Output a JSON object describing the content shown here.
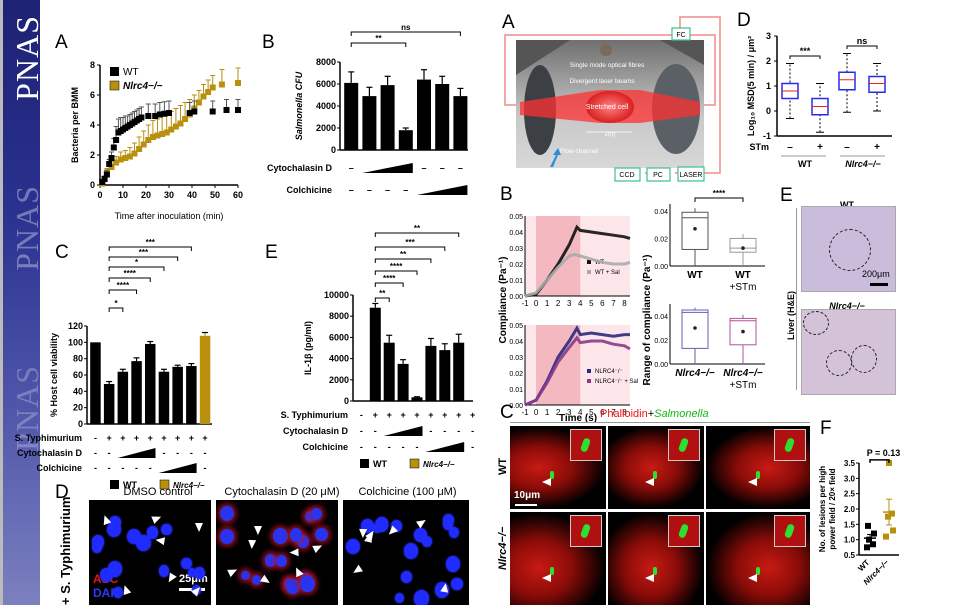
{
  "journal": {
    "name": "PNAS"
  },
  "left": {
    "A": {
      "letter": "A",
      "chart_data": {
        "type": "scatter",
        "xlabel": "Time after inoculation (min)",
        "ylabel": "Bacteria per BMM",
        "xlim": [
          0,
          60
        ],
        "ylim": [
          0,
          8
        ],
        "xticks": [
          "0",
          "10",
          "20",
          "30",
          "40",
          "50",
          "60"
        ],
        "yticks": [
          "0",
          "2",
          "4",
          "6",
          "8"
        ],
        "legend": [
          "WT",
          "Nlrc4−/−"
        ],
        "series": [
          {
            "name": "WT",
            "color": "#000000",
            "x": [
              1,
              2,
              3,
              4,
              5,
              6,
              7,
              8,
              9,
              10,
              11,
              12,
              13,
              14,
              15,
              16,
              17,
              18,
              21,
              24,
              26,
              28,
              30,
              39,
              41,
              49,
              55,
              60
            ],
            "y": [
              0.2,
              0.4,
              0.7,
              1.4,
              1.8,
              2.5,
              3.0,
              3.5,
              3.6,
              3.7,
              3.8,
              3.9,
              4.0,
              4.1,
              4.2,
              4.3,
              4.4,
              4.5,
              4.6,
              4.6,
              4.7,
              4.75,
              4.8,
              4.8,
              4.9,
              4.9,
              5.0,
              5.0
            ],
            "err": [
              0.1,
              0.2,
              0.3,
              0.3,
              0.4,
              0.6,
              0.9,
              0.9,
              0.9,
              0.8,
              0.8,
              0.7,
              0.7,
              0.7,
              0.7,
              0.7,
              0.7,
              0.7,
              0.8,
              0.8,
              0.8,
              0.8,
              0.8,
              0.7,
              0.7,
              0.7,
              0.7,
              0.7
            ]
          },
          {
            "name": "Nlrc4−/−",
            "color": "#b8900e",
            "x": [
              1,
              3,
              5,
              7,
              9,
              11,
              13,
              15,
              17,
              19,
              21,
              23,
              25,
              27,
              29,
              31,
              33,
              35,
              37,
              39,
              41,
              43,
              45,
              47,
              49,
              53,
              60
            ],
            "y": [
              0.1,
              0.8,
              1.2,
              1.5,
              1.7,
              1.8,
              1.9,
              2.1,
              2.4,
              2.7,
              3.0,
              3.2,
              3.3,
              3.4,
              3.5,
              3.7,
              3.9,
              4.1,
              4.4,
              4.7,
              5.1,
              5.5,
              5.9,
              6.2,
              6.5,
              6.7,
              6.8
            ],
            "err": [
              0.1,
              0.3,
              0.4,
              0.4,
              0.5,
              0.5,
              0.6,
              0.7,
              0.8,
              0.9,
              1.0,
              1.1,
              1.1,
              1.2,
              1.2,
              1.2,
              1.2,
              1.2,
              1.1,
              1.0,
              0.9,
              0.8,
              0.8,
              0.8,
              0.8,
              1.0,
              1.0
            ]
          }
        ]
      }
    },
    "B": {
      "letter": "B",
      "chart_data": {
        "type": "bar",
        "ylabel": "Salmonella CFU",
        "ylim": [
          0,
          8000
        ],
        "yticks": [
          "0",
          "2000",
          "4000",
          "6000",
          "8000"
        ],
        "values": [
          6100,
          4900,
          5900,
          1800,
          6400,
          6000,
          4900
        ],
        "errors": [
          1000,
          800,
          800,
          200,
          900,
          700,
          700
        ],
        "significance": [
          {
            "label": "**",
            "from": 0,
            "to": 3
          },
          {
            "label": "ns",
            "from": 0,
            "to": 6
          }
        ],
        "treatments": [
          {
            "name": "Cytochalasin D",
            "marks": [
              "–",
              "ramp",
              "ramp",
              "ramp",
              "–",
              "–",
              "–"
            ]
          },
          {
            "name": "Colchicine",
            "marks": [
              "–",
              "–",
              "–",
              "–",
              "ramp",
              "ramp",
              "ramp"
            ]
          }
        ]
      }
    },
    "C": {
      "letter": "C",
      "chart_data": {
        "type": "bar",
        "ylabel": "% Host cell viability",
        "ylim": [
          0,
          120
        ],
        "yticks": [
          "0",
          "20",
          "40",
          "60",
          "80",
          "100",
          "120"
        ],
        "values": [
          100,
          49,
          64,
          77,
          98,
          64,
          70,
          71,
          108
        ],
        "errors": [
          0,
          3,
          3,
          4,
          3,
          3,
          2,
          3,
          4
        ],
        "colors": [
          "#000000",
          "#000000",
          "#000000",
          "#000000",
          "#000000",
          "#000000",
          "#000000",
          "#000000",
          "#b8900e"
        ],
        "significance": [
          {
            "label": "*",
            "from": 1,
            "to": 2
          },
          {
            "label": "****",
            "from": 1,
            "to": 3
          },
          {
            "label": "****",
            "from": 1,
            "to": 4
          },
          {
            "label": "*",
            "from": 1,
            "to": 5
          },
          {
            "label": "***",
            "from": 1,
            "to": 6
          },
          {
            "label": "***",
            "from": 1,
            "to": 7
          }
        ],
        "treatments": [
          {
            "name": "S. Typhimurium",
            "marks": [
              "-",
              "+",
              "+",
              "+",
              "+",
              "+",
              "+",
              "+",
              "+"
            ]
          },
          {
            "name": "Cytochalasin D",
            "marks": [
              "-",
              "-",
              "ramp",
              "ramp",
              "ramp",
              "-",
              "-",
              "-",
              "-"
            ]
          },
          {
            "name": "Colchicine",
            "marks": [
              "-",
              "-",
              "-",
              "-",
              "-",
              "ramp",
              "ramp",
              "ramp",
              "-"
            ]
          }
        ],
        "legend": [
          "WT",
          "Nlrc4−/−"
        ]
      }
    },
    "E": {
      "letter": "E",
      "chart_data": {
        "type": "bar",
        "ylabel": "IL-1β (pg/ml)",
        "ylim": [
          0,
          10000
        ],
        "yticks": [
          "0",
          "2000",
          "4000",
          "6000",
          "8000",
          "10000"
        ],
        "values": [
          0,
          8800,
          5500,
          3500,
          350,
          5200,
          4800,
          5500,
          0
        ],
        "errors": [
          0,
          400,
          700,
          400,
          50,
          700,
          600,
          800,
          0
        ],
        "colors": [
          "#000000",
          "#000000",
          "#000000",
          "#000000",
          "#000000",
          "#000000",
          "#000000",
          "#000000",
          "#b8900e"
        ],
        "significance": [
          {
            "label": "**",
            "from": 1,
            "to": 2
          },
          {
            "label": "****",
            "from": 1,
            "to": 3
          },
          {
            "label": "****",
            "from": 1,
            "to": 4
          },
          {
            "label": "**",
            "from": 1,
            "to": 5
          },
          {
            "label": "***",
            "from": 1,
            "to": 6
          },
          {
            "label": "**",
            "from": 1,
            "to": 7
          }
        ],
        "treatments": [
          {
            "name": "S. Typhimurium",
            "marks": [
              "-",
              "+",
              "+",
              "+",
              "+",
              "+",
              "+",
              "+",
              "+"
            ]
          },
          {
            "name": "Cytochalasin D",
            "marks": [
              "-",
              "-",
              "ramp",
              "ramp",
              "ramp",
              "-",
              "-",
              "-",
              "-"
            ]
          },
          {
            "name": "Colchicine",
            "marks": [
              "-",
              "-",
              "-",
              "-",
              "-",
              "ramp",
              "ramp",
              "ramp",
              "-"
            ]
          }
        ],
        "legend": [
          "WT",
          "Nlrc4−/−"
        ]
      }
    },
    "D": {
      "letter": "D",
      "row_label": "+ S. Typhimurium",
      "images": [
        {
          "title": "DMSO control"
        },
        {
          "title": "Cytochalasin D (20 μM)"
        },
        {
          "title": "Colchicine (100 μM)"
        }
      ],
      "stain_asc": "ASC",
      "stain_dapi": "DAPI",
      "scale_bar": "25μm"
    }
  },
  "right": {
    "A": {
      "letter": "A",
      "labels": {
        "fibres": "Single mode optical fibres",
        "beams": "Divergent laser beams",
        "cell": "Stretched cell",
        "radius": "2r(t)",
        "flow": "Flow channel",
        "fc": "FC",
        "ccd": "CCD",
        "pc": "PC",
        "laser": "LASER"
      }
    },
    "B": {
      "letter": "B",
      "ylabel": "Compliance (Pa⁻¹)",
      "xlabel": "Time (s)",
      "range_ylabel": "Range of compliance (Pa⁻¹)",
      "chart_data": [
        {
          "type": "line",
          "xlim": [
            -1,
            8.5
          ],
          "ylim": [
            0,
            0.05
          ],
          "xticks": [
            "-1",
            "0",
            "1",
            "2",
            "3",
            "4",
            "5",
            "6",
            "7",
            "8"
          ],
          "yticks": [
            "0.00",
            "0.01",
            "0.02",
            "0.03",
            "0.04",
            "0.05"
          ],
          "series": [
            {
              "name": "WT",
              "color": "#111111",
              "x": [
                -1,
                0,
                1,
                2,
                3,
                3.7,
                4,
                5,
                6,
                7,
                8,
                8.5
              ],
              "y": [
                0,
                0.001,
                0.01,
                0.02,
                0.032,
                0.043,
                0.041,
                0.04,
                0.039,
                0.038,
                0.037,
                0.036
              ]
            },
            {
              "name": "WT + Sal",
              "color": "#aaaaaa",
              "x": [
                -1,
                0,
                1,
                2,
                3,
                3.5,
                4,
                5,
                6,
                7,
                8,
                8.5
              ],
              "y": [
                0,
                0.002,
                0.01,
                0.018,
                0.025,
                0.026,
                0.025,
                0.023,
                0.021,
                0.02,
                0.02,
                0.021
              ]
            }
          ]
        },
        {
          "type": "line",
          "xlim": [
            -1,
            8.5
          ],
          "ylim": [
            0,
            0.05
          ],
          "xticks": [
            "-1",
            "0",
            "1",
            "2",
            "3",
            "4",
            "5",
            "6",
            "7",
            "8"
          ],
          "yticks": [
            "0.00",
            "0.01",
            "0.02",
            "0.03",
            "0.04",
            "0.05"
          ],
          "series": [
            {
              "name": "NLRC4⁻/⁻",
              "color": "#2a2a80",
              "x": [
                -1,
                0,
                1,
                2,
                3,
                3.7,
                4,
                5,
                6,
                7,
                8,
                8.5
              ],
              "y": [
                0,
                0.003,
                0.015,
                0.03,
                0.04,
                0.048,
                0.044,
                0.045,
                0.044,
                0.043,
                0.044,
                0.044
              ]
            },
            {
              "name": "NLRC4⁻/⁻ + Sal",
              "color": "#8a3a8a",
              "x": [
                -1,
                0,
                1,
                2,
                3,
                3.7,
                4,
                5,
                6,
                7,
                8,
                8.5
              ],
              "y": [
                0,
                0.003,
                0.014,
                0.027,
                0.036,
                0.042,
                0.039,
                0.04,
                0.04,
                0.038,
                0.037,
                0.035
              ]
            }
          ]
        },
        {
          "type": "box",
          "ylim": [
            0,
            0.045
          ],
          "yticks": [
            "0.00",
            "0.02",
            "0.04"
          ],
          "categories": [
            "WT",
            "WT +STm"
          ],
          "boxes": [
            {
              "min": 0.0,
              "q1": 0.012,
              "median": 0.035,
              "q3": 0.039,
              "max": 0.042,
              "mean": 0.027,
              "color": "#555555"
            },
            {
              "min": 0.0,
              "q1": 0.01,
              "median": 0.013,
              "q3": 0.02,
              "max": 0.023,
              "mean": 0.013,
              "color": "#999999"
            }
          ],
          "significance": "****"
        },
        {
          "type": "box",
          "ylim": [
            0,
            0.05
          ],
          "yticks": [
            "0.00",
            "0.02",
            "0.04"
          ],
          "categories": [
            "Nlrc4−/−",
            "Nlrc4−/− +STm"
          ],
          "boxes": [
            {
              "min": 0.0,
              "q1": 0.013,
              "median": 0.043,
              "q3": 0.045,
              "max": 0.047,
              "mean": 0.03,
              "color": "#6060b0"
            },
            {
              "min": 0.0,
              "q1": 0.016,
              "median": 0.036,
              "q3": 0.038,
              "max": 0.041,
              "mean": 0.027,
              "color": "#b050a0"
            }
          ]
        }
      ]
    },
    "C": {
      "letter": "C",
      "title_red": "Phalloidin",
      "title_plus": "+",
      "title_green": "Salmonella",
      "rows": [
        "WT",
        "Nlrc4−/−"
      ],
      "scale_bar": "10μm"
    },
    "D": {
      "letter": "D",
      "chart_data": {
        "type": "box",
        "ylabel": "Log₁₀ MSD(5 min) / μm²",
        "ylim": [
          -1,
          3
        ],
        "yticks": [
          "-1",
          "0",
          "1",
          "2",
          "3"
        ],
        "xlabel_row": "STm",
        "stm_marks": [
          "–",
          "+",
          "–",
          "+"
        ],
        "groups": [
          "WT",
          "Nlrc4−/−"
        ],
        "boxes": [
          {
            "min": -0.3,
            "q1": 0.5,
            "median": 0.8,
            "q3": 1.1,
            "max": 1.9
          },
          {
            "min": -0.85,
            "q1": -0.15,
            "median": 0.18,
            "q3": 0.5,
            "max": 1.1
          },
          {
            "min": -0.05,
            "q1": 0.85,
            "median": 1.25,
            "q3": 1.55,
            "max": 2.3
          },
          {
            "min": 0.0,
            "q1": 0.75,
            "median": 1.1,
            "q3": 1.38,
            "max": 1.9
          }
        ],
        "significance": [
          {
            "label": "***",
            "from": 0,
            "to": 1
          },
          {
            "label": "ns",
            "from": 2,
            "to": 3
          }
        ]
      }
    },
    "E": {
      "letter": "E",
      "side_label": "Liver (H&E)",
      "images": [
        {
          "title": "WT"
        },
        {
          "title": "Nlrc4−/−"
        }
      ],
      "scale_bar": "200μm"
    },
    "F": {
      "letter": "F",
      "chart_data": {
        "type": "scatter",
        "ylabel": "No. of lesions per high power field / 20× field",
        "ylim": [
          0.5,
          3.5
        ],
        "yticks": [
          "0.5",
          "1.0",
          "1.5",
          "2.0",
          "2.5",
          "3.0",
          "3.5"
        ],
        "categories": [
          "WT",
          "Nlrc4−/−"
        ],
        "points": [
          [
            0.75,
            0.85,
            1.0,
            1.2,
            1.45
          ],
          [
            1.1,
            1.3,
            1.75,
            1.85,
            3.5
          ]
        ],
        "means": [
          1.05,
          1.9
        ],
        "sem": [
          0.12,
          0.42
        ],
        "colors": [
          "#000000",
          "#b8900e"
        ],
        "annotation": "P = 0.13"
      }
    }
  }
}
